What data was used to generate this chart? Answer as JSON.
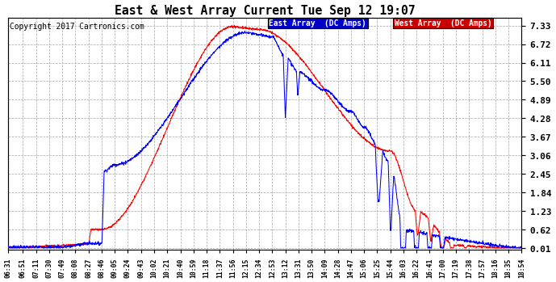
{
  "title": "East & West Array Current Tue Sep 12 19:07",
  "copyright": "Copyright 2017 Cartronics.com",
  "legend_east": "East Array  (DC Amps)",
  "legend_west": "West Array  (DC Amps)",
  "east_color": "#0000FF",
  "west_color": "#FF0000",
  "background_color": "#FFFFFF",
  "plot_bg_color": "#FFFFFF",
  "grid_color": "#AAAAAA",
  "yticks": [
    0.01,
    0.62,
    1.23,
    1.84,
    2.45,
    3.06,
    3.67,
    4.28,
    4.89,
    5.5,
    6.11,
    6.72,
    7.33
  ],
  "ylim": [
    -0.05,
    7.6
  ],
  "xtick_labels": [
    "06:31",
    "06:51",
    "07:11",
    "07:30",
    "07:49",
    "08:08",
    "08:27",
    "08:46",
    "09:05",
    "09:24",
    "09:43",
    "10:02",
    "10:21",
    "10:40",
    "10:59",
    "11:18",
    "11:37",
    "11:56",
    "12:15",
    "12:34",
    "12:53",
    "13:12",
    "13:31",
    "13:50",
    "14:09",
    "14:28",
    "14:47",
    "15:06",
    "15:25",
    "15:44",
    "16:03",
    "16:22",
    "16:41",
    "17:00",
    "17:19",
    "17:38",
    "17:57",
    "18:16",
    "18:35",
    "18:54"
  ]
}
